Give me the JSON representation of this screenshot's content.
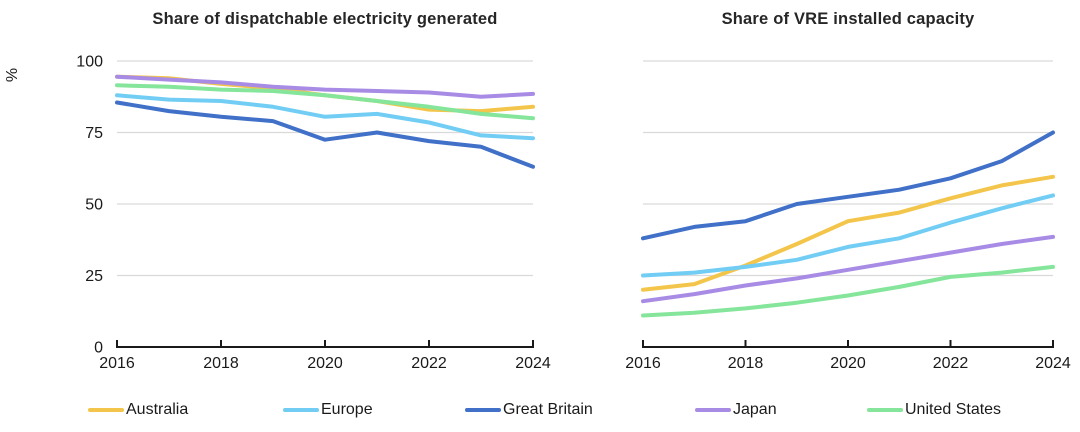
{
  "colors": {
    "grid": "#d9d9d9",
    "axis": "#1a1a1a",
    "tick_text": "#1a1a1a",
    "title_text": "#262626"
  },
  "legend": {
    "items": [
      {
        "label": "Australia",
        "color": "#f3c54a"
      },
      {
        "label": "Europe",
        "color": "#72cdf4"
      },
      {
        "label": "Great Britain",
        "color": "#4070c8"
      },
      {
        "label": "Japan",
        "color": "#a88be5"
      },
      {
        "label": "United States",
        "color": "#85e59b"
      }
    ]
  },
  "chart_data": [
    {
      "type": "line",
      "title": "Share of dispatchable electricity generated",
      "ylabel": "%",
      "x": [
        2016,
        2017,
        2018,
        2019,
        2020,
        2021,
        2022,
        2023,
        2024
      ],
      "xticks": [
        2016,
        2018,
        2020,
        2022,
        2024
      ],
      "ylim": [
        0,
        100
      ],
      "yticks": [
        0,
        25,
        50,
        75,
        100
      ],
      "grid": true,
      "legend_position": "bottom",
      "series": [
        {
          "name": "Australia",
          "color": "#f3c54a",
          "values": [
            94.5,
            94,
            92,
            90.5,
            88,
            86,
            83,
            82.5,
            84
          ]
        },
        {
          "name": "Europe",
          "color": "#72cdf4",
          "values": [
            88,
            86.5,
            86,
            84,
            80.5,
            81.5,
            78.5,
            74,
            73
          ]
        },
        {
          "name": "Great Britain",
          "color": "#4070c8",
          "values": [
            85.5,
            82.5,
            80.5,
            79,
            72.5,
            75,
            72,
            70,
            63
          ]
        },
        {
          "name": "Japan",
          "color": "#a88be5",
          "values": [
            94.5,
            93.5,
            92.5,
            91,
            90,
            89.5,
            89,
            87.5,
            88.5
          ]
        },
        {
          "name": "United States",
          "color": "#85e59b",
          "values": [
            91.5,
            91,
            90,
            89.5,
            88,
            86,
            84,
            81.5,
            80
          ]
        }
      ]
    },
    {
      "type": "line",
      "title": "Share of VRE installed capacity",
      "ylabel": "%",
      "x": [
        2016,
        2017,
        2018,
        2019,
        2020,
        2021,
        2022,
        2023,
        2024
      ],
      "xticks": [
        2016,
        2018,
        2020,
        2022,
        2024
      ],
      "ylim": [
        0,
        100
      ],
      "yticks": [
        0,
        25,
        50,
        75,
        100
      ],
      "grid": true,
      "legend_position": "bottom",
      "series": [
        {
          "name": "Australia",
          "color": "#f3c54a",
          "values": [
            20,
            22,
            28.5,
            36,
            44,
            47,
            52,
            56.5,
            59.5
          ]
        },
        {
          "name": "Europe",
          "color": "#72cdf4",
          "values": [
            25,
            26,
            28,
            30.5,
            35,
            38,
            43.5,
            48.5,
            53
          ]
        },
        {
          "name": "Great Britain",
          "color": "#4070c8",
          "values": [
            38,
            42,
            44,
            50,
            52.5,
            55,
            59,
            65,
            75
          ]
        },
        {
          "name": "Japan",
          "color": "#a88be5",
          "values": [
            16,
            18.5,
            21.5,
            24,
            27,
            30,
            33,
            36,
            38.5
          ]
        },
        {
          "name": "United States",
          "color": "#85e59b",
          "values": [
            11,
            12,
            13.5,
            15.5,
            18,
            21,
            24.5,
            26,
            28
          ]
        }
      ]
    }
  ]
}
